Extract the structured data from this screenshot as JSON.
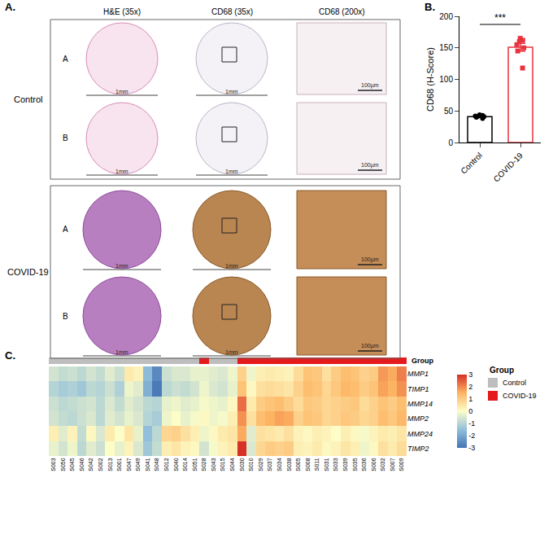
{
  "figure": {
    "panel_a": {
      "label": "A.",
      "columns": [
        "H&E (35x)",
        "CD68 (35x)",
        "CD68 (200x)"
      ],
      "groups": [
        {
          "name": "Control",
          "rows": [
            "A",
            "B"
          ]
        },
        {
          "name": "COVID-19",
          "rows": [
            "A",
            "B"
          ]
        }
      ],
      "scale_bars": [
        "1mm",
        "1mm",
        "100µm"
      ]
    }
  },
  "chart_data": [
    {
      "type": "bar",
      "label": "B.",
      "y_label": "CD68 (H-Score)",
      "categories": [
        "Control",
        "COVID-19"
      ],
      "values": [
        41,
        151
      ],
      "errors": [
        1.1,
        6.0
      ],
      "points": [
        [
          38,
          40,
          41,
          42,
          42,
          43,
          44
        ],
        [
          118,
          145,
          150,
          155,
          160,
          162,
          165
        ]
      ],
      "colors": [
        "#000000",
        "#e8333f"
      ],
      "markers": [
        "circle",
        "square"
      ],
      "ylim": [
        0,
        200
      ],
      "yticks": [
        0,
        50,
        100,
        150,
        200
      ],
      "grid": false,
      "significance": {
        "label": "***",
        "between": [
          "Control",
          "COVID-19"
        ]
      }
    },
    {
      "type": "heatmap",
      "label": "C.",
      "x": [
        "S003",
        "S050",
        "S045",
        "S046",
        "S042",
        "S002",
        "S013",
        "S001",
        "S047",
        "S049",
        "S041",
        "S048",
        "S012",
        "S040",
        "S014",
        "S051",
        "S028",
        "S043",
        "S015",
        "S044",
        "S030",
        "S010",
        "S029",
        "S037",
        "S034",
        "S038",
        "S005",
        "S008",
        "S011",
        "S031",
        "S033",
        "S039",
        "S035",
        "S036",
        "S006",
        "S032",
        "S007",
        "S009"
      ],
      "y": [
        "MMP1",
        "TIMP1",
        "MMP14",
        "MMP2",
        "MMP24",
        "TIMP2"
      ],
      "z": [
        [
          -0.6,
          -0.8,
          -0.7,
          -0.9,
          -0.6,
          -0.8,
          -0.4,
          -0.7,
          0.4,
          0.2,
          -1.6,
          -2.6,
          -0.7,
          -0.5,
          -0.5,
          -0.3,
          -0.3,
          -0.4,
          -0.5,
          -0.2,
          0.9,
          -0.2,
          0.3,
          0.4,
          0.3,
          0.2,
          0.7,
          1.2,
          1.1,
          0.6,
          1.0,
          1.3,
          1.2,
          0.9,
          1.0,
          1.8,
          1.6,
          2.1
        ],
        [
          -1.0,
          -1.2,
          -1.1,
          -1.3,
          -0.9,
          -1.0,
          -0.7,
          -1.1,
          -0.2,
          -0.4,
          -1.8,
          -2.9,
          -0.9,
          -0.7,
          -0.8,
          -0.6,
          -0.2,
          -0.5,
          -0.6,
          -0.3,
          1.2,
          0.1,
          0.6,
          0.7,
          0.6,
          0.5,
          0.9,
          1.3,
          1.2,
          0.8,
          1.1,
          1.4,
          1.3,
          1.0,
          1.2,
          1.7,
          1.5,
          1.9
        ],
        [
          -0.7,
          -0.9,
          -0.8,
          -0.7,
          -0.6,
          -0.9,
          -0.5,
          -0.8,
          -0.4,
          -0.6,
          -0.9,
          -1.0,
          -0.3,
          -0.2,
          -0.4,
          -0.3,
          -0.1,
          -0.2,
          -0.3,
          0.1,
          2.3,
          0.4,
          1.0,
          1.2,
          1.3,
          1.0,
          0.7,
          1.1,
          1.0,
          0.8,
          0.9,
          1.0,
          1.1,
          0.7,
          0.9,
          1.2,
          1.0,
          1.3
        ],
        [
          -0.6,
          -0.8,
          -0.9,
          -0.7,
          -0.5,
          -0.9,
          -0.4,
          -0.6,
          -0.3,
          -0.5,
          -1.0,
          -1.2,
          -0.2,
          0.0,
          -0.3,
          -0.1,
          0.1,
          -0.2,
          -0.1,
          0.3,
          1.9,
          0.6,
          1.3,
          1.5,
          1.7,
          1.6,
          0.9,
          1.2,
          1.1,
          0.8,
          0.9,
          1.1,
          1.0,
          0.8,
          0.9,
          1.3,
          1.1,
          1.4
        ],
        [
          0.3,
          -0.4,
          0.2,
          -0.8,
          0.1,
          -0.5,
          0.4,
          0.0,
          0.5,
          -0.3,
          -1.5,
          -0.9,
          0.8,
          0.9,
          0.6,
          0.3,
          -0.2,
          0.1,
          0.4,
          0.5,
          1.6,
          -0.4,
          0.6,
          0.5,
          0.4,
          0.6,
          0.2,
          0.1,
          0.3,
          0.2,
          0.0,
          0.3,
          0.1,
          -0.1,
          0.2,
          0.4,
          0.3,
          0.5
        ],
        [
          -0.3,
          -0.6,
          -0.2,
          -0.9,
          -0.4,
          -0.7,
          0.0,
          -0.3,
          0.2,
          -0.5,
          -1.3,
          -0.8,
          0.3,
          0.5,
          0.2,
          0.1,
          -0.6,
          -0.1,
          0.2,
          0.4,
          3.1,
          -0.5,
          0.8,
          1.0,
          0.9,
          1.0,
          0.3,
          0.2,
          0.4,
          0.1,
          0.2,
          0.5,
          0.3,
          -0.2,
          0.1,
          0.6,
          0.4,
          0.7
        ]
      ],
      "zlim": [
        -3,
        3
      ],
      "zticks": [
        -3,
        -2,
        -1,
        0,
        1,
        2,
        3
      ],
      "colors": [
        "#4575b4",
        "#91bfdb",
        "#fdfdc8",
        "#fdb462",
        "#d73027"
      ],
      "groups": [
        "Control",
        "Control",
        "Control",
        "Control",
        "Control",
        "Control",
        "Control",
        "Control",
        "Control",
        "Control",
        "Control",
        "Control",
        "Control",
        "Control",
        "Control",
        "Control",
        "COVID-19",
        "Control",
        "Control",
        "Control",
        "COVID-19",
        "COVID-19",
        "COVID-19",
        "COVID-19",
        "COVID-19",
        "COVID-19",
        "COVID-19",
        "COVID-19",
        "COVID-19",
        "COVID-19",
        "COVID-19",
        "COVID-19",
        "COVID-19",
        "COVID-19",
        "COVID-19",
        "COVID-19",
        "COVID-19",
        "COVID-19"
      ],
      "group_title": "Group",
      "group_legend": [
        {
          "name": "Control",
          "color": "#bebebe"
        },
        {
          "name": "COVID-19",
          "color": "#e41a1c"
        }
      ]
    }
  ]
}
